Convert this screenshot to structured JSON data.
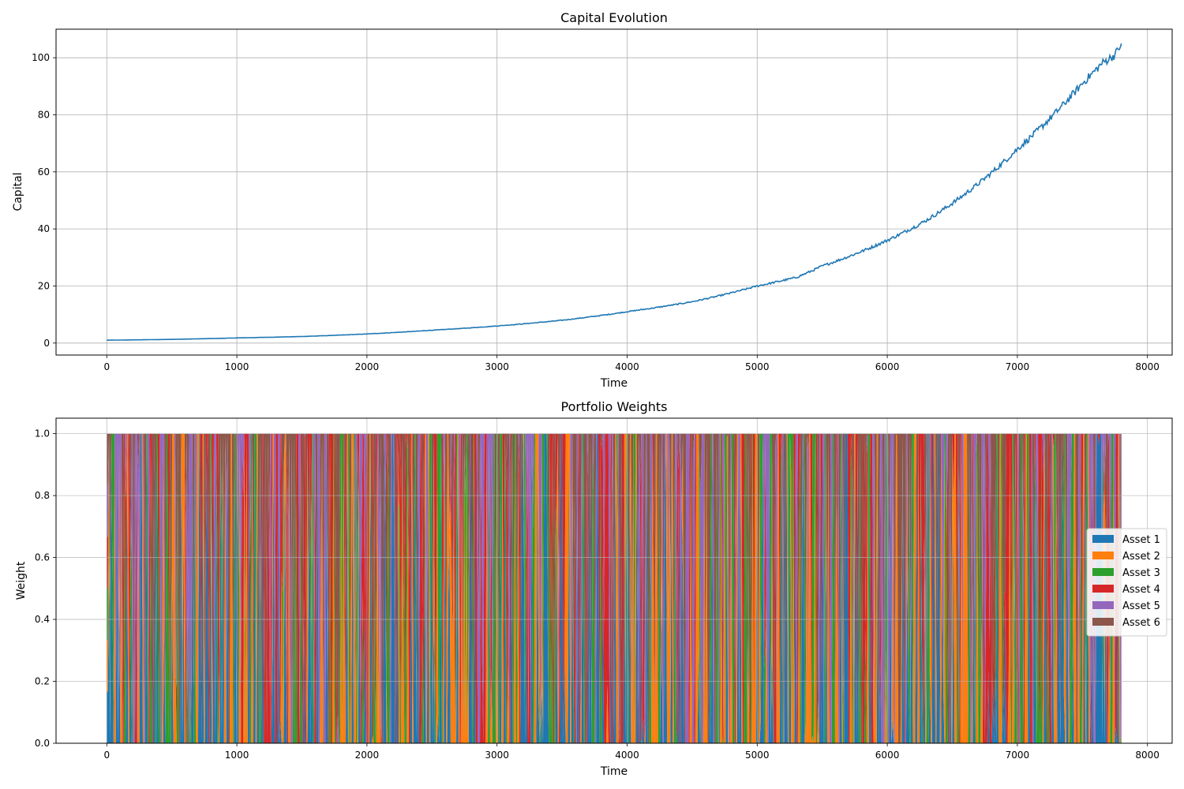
{
  "chart_data": [
    {
      "type": "line",
      "title": "Capital Evolution",
      "xlabel": "Time",
      "ylabel": "Capital",
      "xlim": [
        -390,
        8190
      ],
      "ylim": [
        -4.2,
        110
      ],
      "grid": true,
      "x_ticks": [
        0,
        1000,
        2000,
        3000,
        4000,
        5000,
        6000,
        7000,
        8000
      ],
      "y_ticks": [
        0,
        20,
        40,
        60,
        80,
        100
      ],
      "color": "#1f77b4",
      "x": [
        0,
        500,
        1000,
        1500,
        2000,
        2500,
        3000,
        3500,
        4000,
        4500,
        5000,
        5300,
        5500,
        6000,
        6300,
        6500,
        7000,
        7300,
        7500,
        7650,
        7750,
        7800
      ],
      "values": [
        1.0,
        1.3,
        1.8,
        2.3,
        3.2,
        4.5,
        6.0,
        8.0,
        11.0,
        14.5,
        20.0,
        23.0,
        27.0,
        36.0,
        43.0,
        49.0,
        68.0,
        81.0,
        91.0,
        98.0,
        101.0,
        105.0
      ]
    },
    {
      "type": "area",
      "stacked": true,
      "title": "Portfolio Weights",
      "xlabel": "Time",
      "ylabel": "Weight",
      "xlim": [
        -390,
        8190
      ],
      "ylim": [
        0,
        1.05
      ],
      "grid": true,
      "x_ticks": [
        0,
        1000,
        2000,
        3000,
        4000,
        5000,
        6000,
        7000,
        8000
      ],
      "y_ticks": [
        "0.0",
        "0.2",
        "0.4",
        "0.6",
        "0.8",
        "1.0"
      ],
      "legend_position": "center-right",
      "x_range": [
        0,
        7800
      ],
      "initial_weights": [
        0.1667,
        0.1667,
        0.1667,
        0.1667,
        0.1667,
        0.1667
      ],
      "series": [
        {
          "name": "Asset 1",
          "color": "#1f77b4"
        },
        {
          "name": "Asset 2",
          "color": "#ff7f0e"
        },
        {
          "name": "Asset 3",
          "color": "#2ca02c"
        },
        {
          "name": "Asset 4",
          "color": "#d62728"
        },
        {
          "name": "Asset 5",
          "color": "#9467bd"
        },
        {
          "name": "Asset 6",
          "color": "#8c564b"
        }
      ]
    }
  ]
}
